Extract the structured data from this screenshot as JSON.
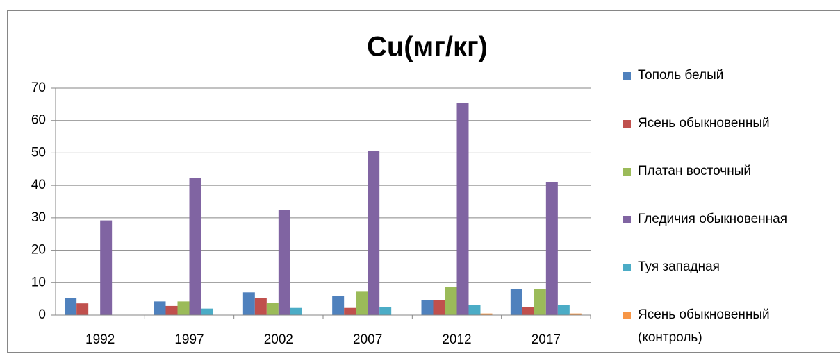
{
  "chart_data": {
    "type": "bar",
    "title": "Cu(мг/кг)",
    "categories": [
      "1992",
      "1997",
      "2002",
      "2007",
      "2012",
      "2017"
    ],
    "series": [
      {
        "name": "Тополь белый",
        "color": "#4f81bd",
        "values": [
          5.3,
          4.2,
          7.0,
          5.8,
          4.7,
          8.0
        ]
      },
      {
        "name": "Ясень обыкновенный",
        "color": "#c0504d",
        "values": [
          3.6,
          2.8,
          5.3,
          2.2,
          4.5,
          2.5
        ]
      },
      {
        "name": "Платан восточный",
        "color": "#9bbb59",
        "values": [
          0,
          4.2,
          3.7,
          7.2,
          8.6,
          8.1
        ]
      },
      {
        "name": "Гледичия обыкновенная",
        "color": "#8064a2",
        "values": [
          29.2,
          42.2,
          32.5,
          50.7,
          65.3,
          41.1
        ]
      },
      {
        "name": "Туя западная",
        "color": "#4bacc6",
        "values": [
          0,
          2.0,
          2.2,
          2.5,
          3.0,
          3.0
        ]
      },
      {
        "name": "Ясень обыкновенный (контроль)",
        "color": "#f79646",
        "values": [
          0,
          0,
          0,
          0,
          0.5,
          0.5
        ]
      }
    ],
    "ylim": [
      0,
      70
    ],
    "yticks": [
      0,
      10,
      20,
      30,
      40,
      50,
      60,
      70
    ],
    "grid": true,
    "legend": "right"
  }
}
